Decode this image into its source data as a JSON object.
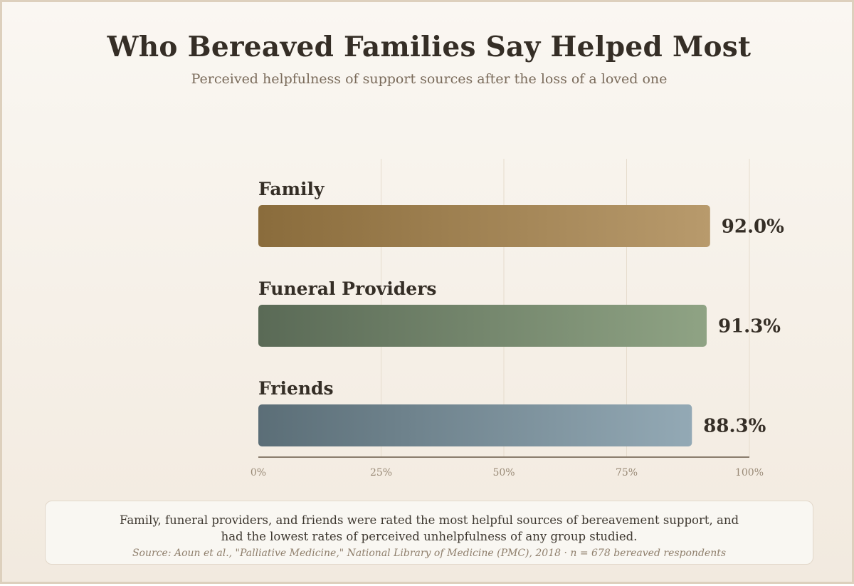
{
  "chart_data": {
    "type": "bar",
    "orientation": "horizontal",
    "title": "Who Bereaved Families Say Helped Most",
    "subtitle": "Perceived helpfulness of support sources after the loss of a loved one",
    "categories": [
      "Family",
      "Funeral Providers",
      "Friends"
    ],
    "values": [
      92.0,
      91.3,
      88.3
    ],
    "value_labels": [
      "92.0%",
      "91.3%",
      "88.3%"
    ],
    "xlim": [
      0,
      100
    ],
    "ticks": [
      0,
      25,
      50,
      75,
      100
    ],
    "tick_labels": [
      "0%",
      "25%",
      "50%",
      "75%",
      "100%"
    ],
    "grid": true,
    "colors": [
      [
        "#8a6c3c",
        "#b89a6c"
      ],
      [
        "#5a6a56",
        "#8fa384"
      ],
      [
        "#5b6e77",
        "#93a9b5"
      ]
    ]
  },
  "footer": {
    "note": "Family, funeral providers, and friends were rated the most helpful sources of bereavement support, and had the lowest rates of perceived unhelpfulness of any group studied.",
    "source": "Source: Aoun et al., \"Palliative Medicine,\" National Library of Medicine (PMC), 2018 · n = 678 bereaved respondents"
  }
}
